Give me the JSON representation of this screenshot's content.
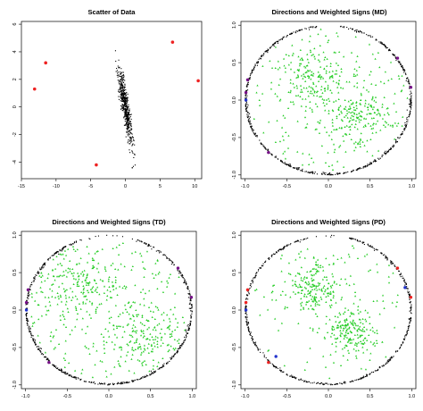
{
  "figure": {
    "background": "#ffffff"
  },
  "colors": {
    "outlier": "#ee2222",
    "points": "#22cc22",
    "ring": "#000000",
    "blue_mark": "#2233cc",
    "purple_mark": "#771188"
  },
  "chart_data": [
    {
      "type": "scatter",
      "title": "Scatter of Data",
      "xlabel": "",
      "ylabel": "",
      "xlim": [
        -15,
        11
      ],
      "ylim": [
        -5.2,
        6.2
      ],
      "x_ticks": [
        -15,
        -10,
        -5,
        0,
        5,
        10
      ],
      "y_ticks": [
        -4,
        -2,
        0,
        2,
        4,
        6
      ],
      "grid": false,
      "bulk_cloud": {
        "color": "#000000",
        "n": 520,
        "center": [
          0,
          0
        ],
        "slope": -3.2,
        "std_along": 0.45,
        "std_perp": 0.28,
        "seed": 7
      },
      "outliers": [
        {
          "x": -13.1,
          "y": 1.3
        },
        {
          "x": -11.5,
          "y": 3.2
        },
        {
          "x": -4.2,
          "y": -4.2
        },
        {
          "x": 6.8,
          "y": 4.7
        },
        {
          "x": 10.5,
          "y": 1.9
        }
      ]
    },
    {
      "type": "scatter",
      "title": "Directions and Weighted Signs (MD)",
      "xlabel": "",
      "ylabel": "",
      "xlim": [
        -1.05,
        1.05
      ],
      "ylim": [
        -1.05,
        1.05
      ],
      "x_ticks": [
        -1.0,
        -0.5,
        0.0,
        0.5,
        1.0
      ],
      "y_ticks": [
        -1.0,
        -0.5,
        0.0,
        0.5,
        1.0
      ],
      "grid": false,
      "circle": {
        "radius": 1.0,
        "n": 700,
        "density_sigma": 0.7,
        "seed": 11,
        "gap_at_top": [
          82,
          98
        ]
      },
      "interior": {
        "n": 520,
        "seed": 23,
        "clusters": [
          {
            "angle": 120,
            "r": 0.35,
            "spread": 0.23
          },
          {
            "angle": -38,
            "r": 0.45,
            "spread": 0.2
          }
        ],
        "background_fraction": 0.25
      },
      "marked": [
        {
          "x": -0.99,
          "y": 0.1,
          "color": "#771188"
        },
        {
          "x": -0.97,
          "y": 0.27,
          "color": "#771188"
        },
        {
          "x": -0.99,
          "y": 0.0,
          "color": "#2233cc"
        },
        {
          "x": -0.72,
          "y": -0.7,
          "color": "#771188"
        },
        {
          "x": 0.83,
          "y": 0.56,
          "color": "#771188"
        },
        {
          "x": 0.99,
          "y": 0.17,
          "color": "#771188"
        }
      ]
    },
    {
      "type": "scatter",
      "title": "Directions and Weighted Signs (TD)",
      "xlabel": "",
      "ylabel": "",
      "xlim": [
        -1.05,
        1.05
      ],
      "ylim": [
        -1.05,
        1.05
      ],
      "x_ticks": [
        -1.0,
        -0.5,
        0.0,
        0.5,
        1.0
      ],
      "y_ticks": [
        -1.0,
        -0.5,
        0.0,
        0.5,
        1.0
      ],
      "grid": false,
      "circle": {
        "radius": 1.0,
        "n": 700,
        "density_sigma": 0.7,
        "seed": 13,
        "gap_at_top": [
          70,
          110
        ]
      },
      "interior": {
        "n": 560,
        "seed": 29,
        "clusters": [
          {
            "angle": 135,
            "r": 0.5,
            "spread": 0.25
          },
          {
            "angle": -40,
            "r": 0.5,
            "spread": 0.25
          }
        ],
        "background_fraction": 0.35
      },
      "marked": [
        {
          "x": -0.99,
          "y": 0.1,
          "color": "#771188"
        },
        {
          "x": -0.97,
          "y": 0.27,
          "color": "#771188"
        },
        {
          "x": -0.99,
          "y": 0.0,
          "color": "#2233cc"
        },
        {
          "x": -0.72,
          "y": -0.7,
          "color": "#771188"
        },
        {
          "x": 0.83,
          "y": 0.56,
          "color": "#771188"
        },
        {
          "x": 0.99,
          "y": 0.17,
          "color": "#771188"
        }
      ]
    },
    {
      "type": "scatter",
      "title": "Directions and Weighted Signs (PD)",
      "xlabel": "",
      "ylabel": "",
      "xlim": [
        -1.05,
        1.05
      ],
      "ylim": [
        -1.05,
        1.05
      ],
      "x_ticks": [
        -1.0,
        -0.5,
        0.0,
        0.5,
        1.0
      ],
      "y_ticks": [
        -1.0,
        -0.5,
        0.0,
        0.5,
        1.0
      ],
      "grid": false,
      "circle": {
        "radius": 1.0,
        "n": 620,
        "density_sigma": 0.55,
        "seed": 17,
        "gap_at_top": [
          75,
          105
        ]
      },
      "interior": {
        "n": 480,
        "seed": 31,
        "clusters": [
          {
            "angle": 120,
            "r": 0.35,
            "spread": 0.18
          },
          {
            "angle": -45,
            "r": 0.4,
            "spread": 0.16
          }
        ],
        "background_fraction": 0.2
      },
      "marked": [
        {
          "x": -0.99,
          "y": 0.1,
          "color": "#ee2222"
        },
        {
          "x": -0.97,
          "y": 0.27,
          "color": "#ee2222"
        },
        {
          "x": -0.99,
          "y": 0.0,
          "color": "#2233cc"
        },
        {
          "x": -0.72,
          "y": -0.7,
          "color": "#ee2222"
        },
        {
          "x": -0.63,
          "y": -0.62,
          "color": "#2233cc"
        },
        {
          "x": 0.83,
          "y": 0.56,
          "color": "#ee2222"
        },
        {
          "x": 0.99,
          "y": 0.17,
          "color": "#ee2222"
        },
        {
          "x": 0.92,
          "y": 0.3,
          "color": "#2233cc"
        }
      ]
    }
  ]
}
